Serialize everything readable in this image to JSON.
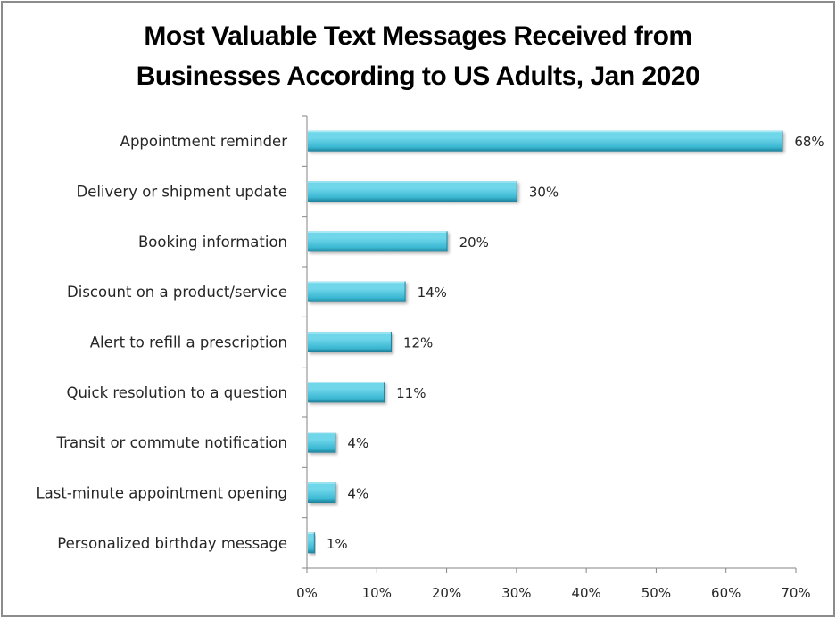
{
  "chart_data": {
    "type": "bar",
    "orientation": "horizontal",
    "title_lines": [
      "Most Valuable Text Messages Received from",
      "Businesses According to US Adults, Jan 2020"
    ],
    "categories": [
      "Appointment reminder",
      "Delivery or shipment update",
      "Booking information",
      "Discount on a product/service",
      "Alert to refill a prescription",
      "Quick resolution to a question",
      "Transit or commute notification",
      "Last-minute appointment opening",
      "Personalized birthday message"
    ],
    "values": [
      68,
      30,
      20,
      14,
      12,
      11,
      4,
      4,
      1
    ],
    "value_labels": [
      "68%",
      "30%",
      "20%",
      "14%",
      "12%",
      "11%",
      "4%",
      "4%",
      "1%"
    ],
    "xlim": [
      0,
      70
    ],
    "x_ticks": [
      0,
      10,
      20,
      30,
      40,
      50,
      60,
      70
    ],
    "x_tick_labels": [
      "0%",
      "10%",
      "20%",
      "30%",
      "40%",
      "50%",
      "60%",
      "70%"
    ],
    "xlabel": "",
    "ylabel": "",
    "grid": false,
    "legend": "none",
    "colors": {
      "bar_light": "#6fd6ea",
      "bar_mid": "#3ab7d2",
      "bar_dark": "#1e7f98",
      "axis": "#868686",
      "text": "#262626"
    }
  }
}
